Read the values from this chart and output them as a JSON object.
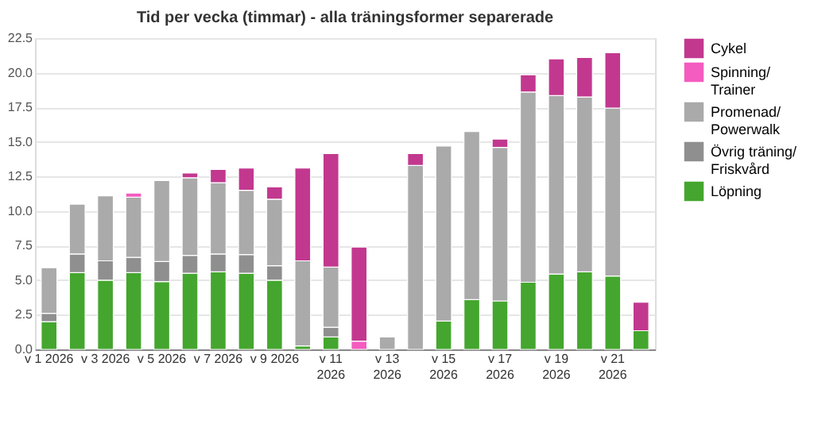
{
  "chart_data": {
    "type": "bar",
    "title": "Tid per vecka (timmar) - alla träningsformer separerade",
    "stacked": true,
    "categories": [
      "v 1 2026",
      null,
      "v 3 2026",
      null,
      "v 5 2026",
      null,
      "v 7 2026",
      null,
      "v 9 2026",
      null,
      "v 11 2026",
      null,
      "v 13 2026",
      null,
      "v 15 2026",
      null,
      "v 17 2026",
      null,
      "v 19 2026",
      null,
      "v 21 2026",
      null
    ],
    "series": [
      {
        "name": "Löpning",
        "color": "#44a62e",
        "values": [
          2.0,
          5.55,
          5.0,
          5.55,
          4.9,
          5.5,
          5.6,
          5.5,
          5.0,
          0.25,
          0.9,
          null,
          null,
          null,
          2.05,
          3.6,
          3.5,
          4.85,
          5.45,
          5.6,
          5.3,
          1.35
        ]
      },
      {
        "name": "Övrig träning/Friskvård",
        "color": "#8f8f8f",
        "values": [
          0.6,
          1.35,
          1.4,
          1.1,
          1.45,
          1.3,
          1.3,
          1.35,
          1.05,
          null,
          0.7,
          null,
          null,
          null,
          null,
          null,
          null,
          null,
          null,
          null,
          null,
          null
        ]
      },
      {
        "name": "Promenad/Powerwalk",
        "color": "#aaaaaa",
        "values": [
          3.3,
          3.6,
          4.7,
          4.35,
          5.85,
          5.6,
          5.15,
          4.65,
          4.8,
          6.15,
          4.35,
          null,
          0.9,
          13.3,
          12.65,
          12.15,
          11.1,
          13.75,
          12.9,
          12.65,
          12.15,
          null
        ]
      },
      {
        "name": "Spinning/Trainer",
        "color": "#f45cbf",
        "values": [
          null,
          null,
          null,
          0.3,
          null,
          null,
          null,
          null,
          null,
          null,
          null,
          0.6,
          null,
          null,
          null,
          null,
          null,
          null,
          null,
          null,
          null,
          null
        ]
      },
      {
        "name": "Cykel",
        "color": "#c2388f",
        "values": [
          null,
          null,
          null,
          null,
          null,
          0.35,
          0.95,
          1.6,
          0.9,
          6.7,
          8.2,
          6.8,
          null,
          0.85,
          null,
          null,
          0.6,
          1.25,
          2.65,
          2.85,
          4.0,
          2.05
        ]
      }
    ],
    "ylim": [
      0,
      22.5
    ],
    "yticks": [
      {
        "value": 0,
        "label": "0.0"
      },
      {
        "value": 2.5,
        "label": "2.5"
      },
      {
        "value": 5,
        "label": "5.0"
      },
      {
        "value": 7.5,
        "label": "7.5"
      },
      {
        "value": 10,
        "label": "10.0"
      },
      {
        "value": 12.5,
        "label": "12.5"
      },
      {
        "value": 15,
        "label": "15.0"
      },
      {
        "value": 17.5,
        "label": "17.5"
      },
      {
        "value": 20,
        "label": "20.0"
      },
      {
        "value": 22.5,
        "label": "22.5"
      }
    ],
    "grid": "y",
    "legend": "top right"
  }
}
